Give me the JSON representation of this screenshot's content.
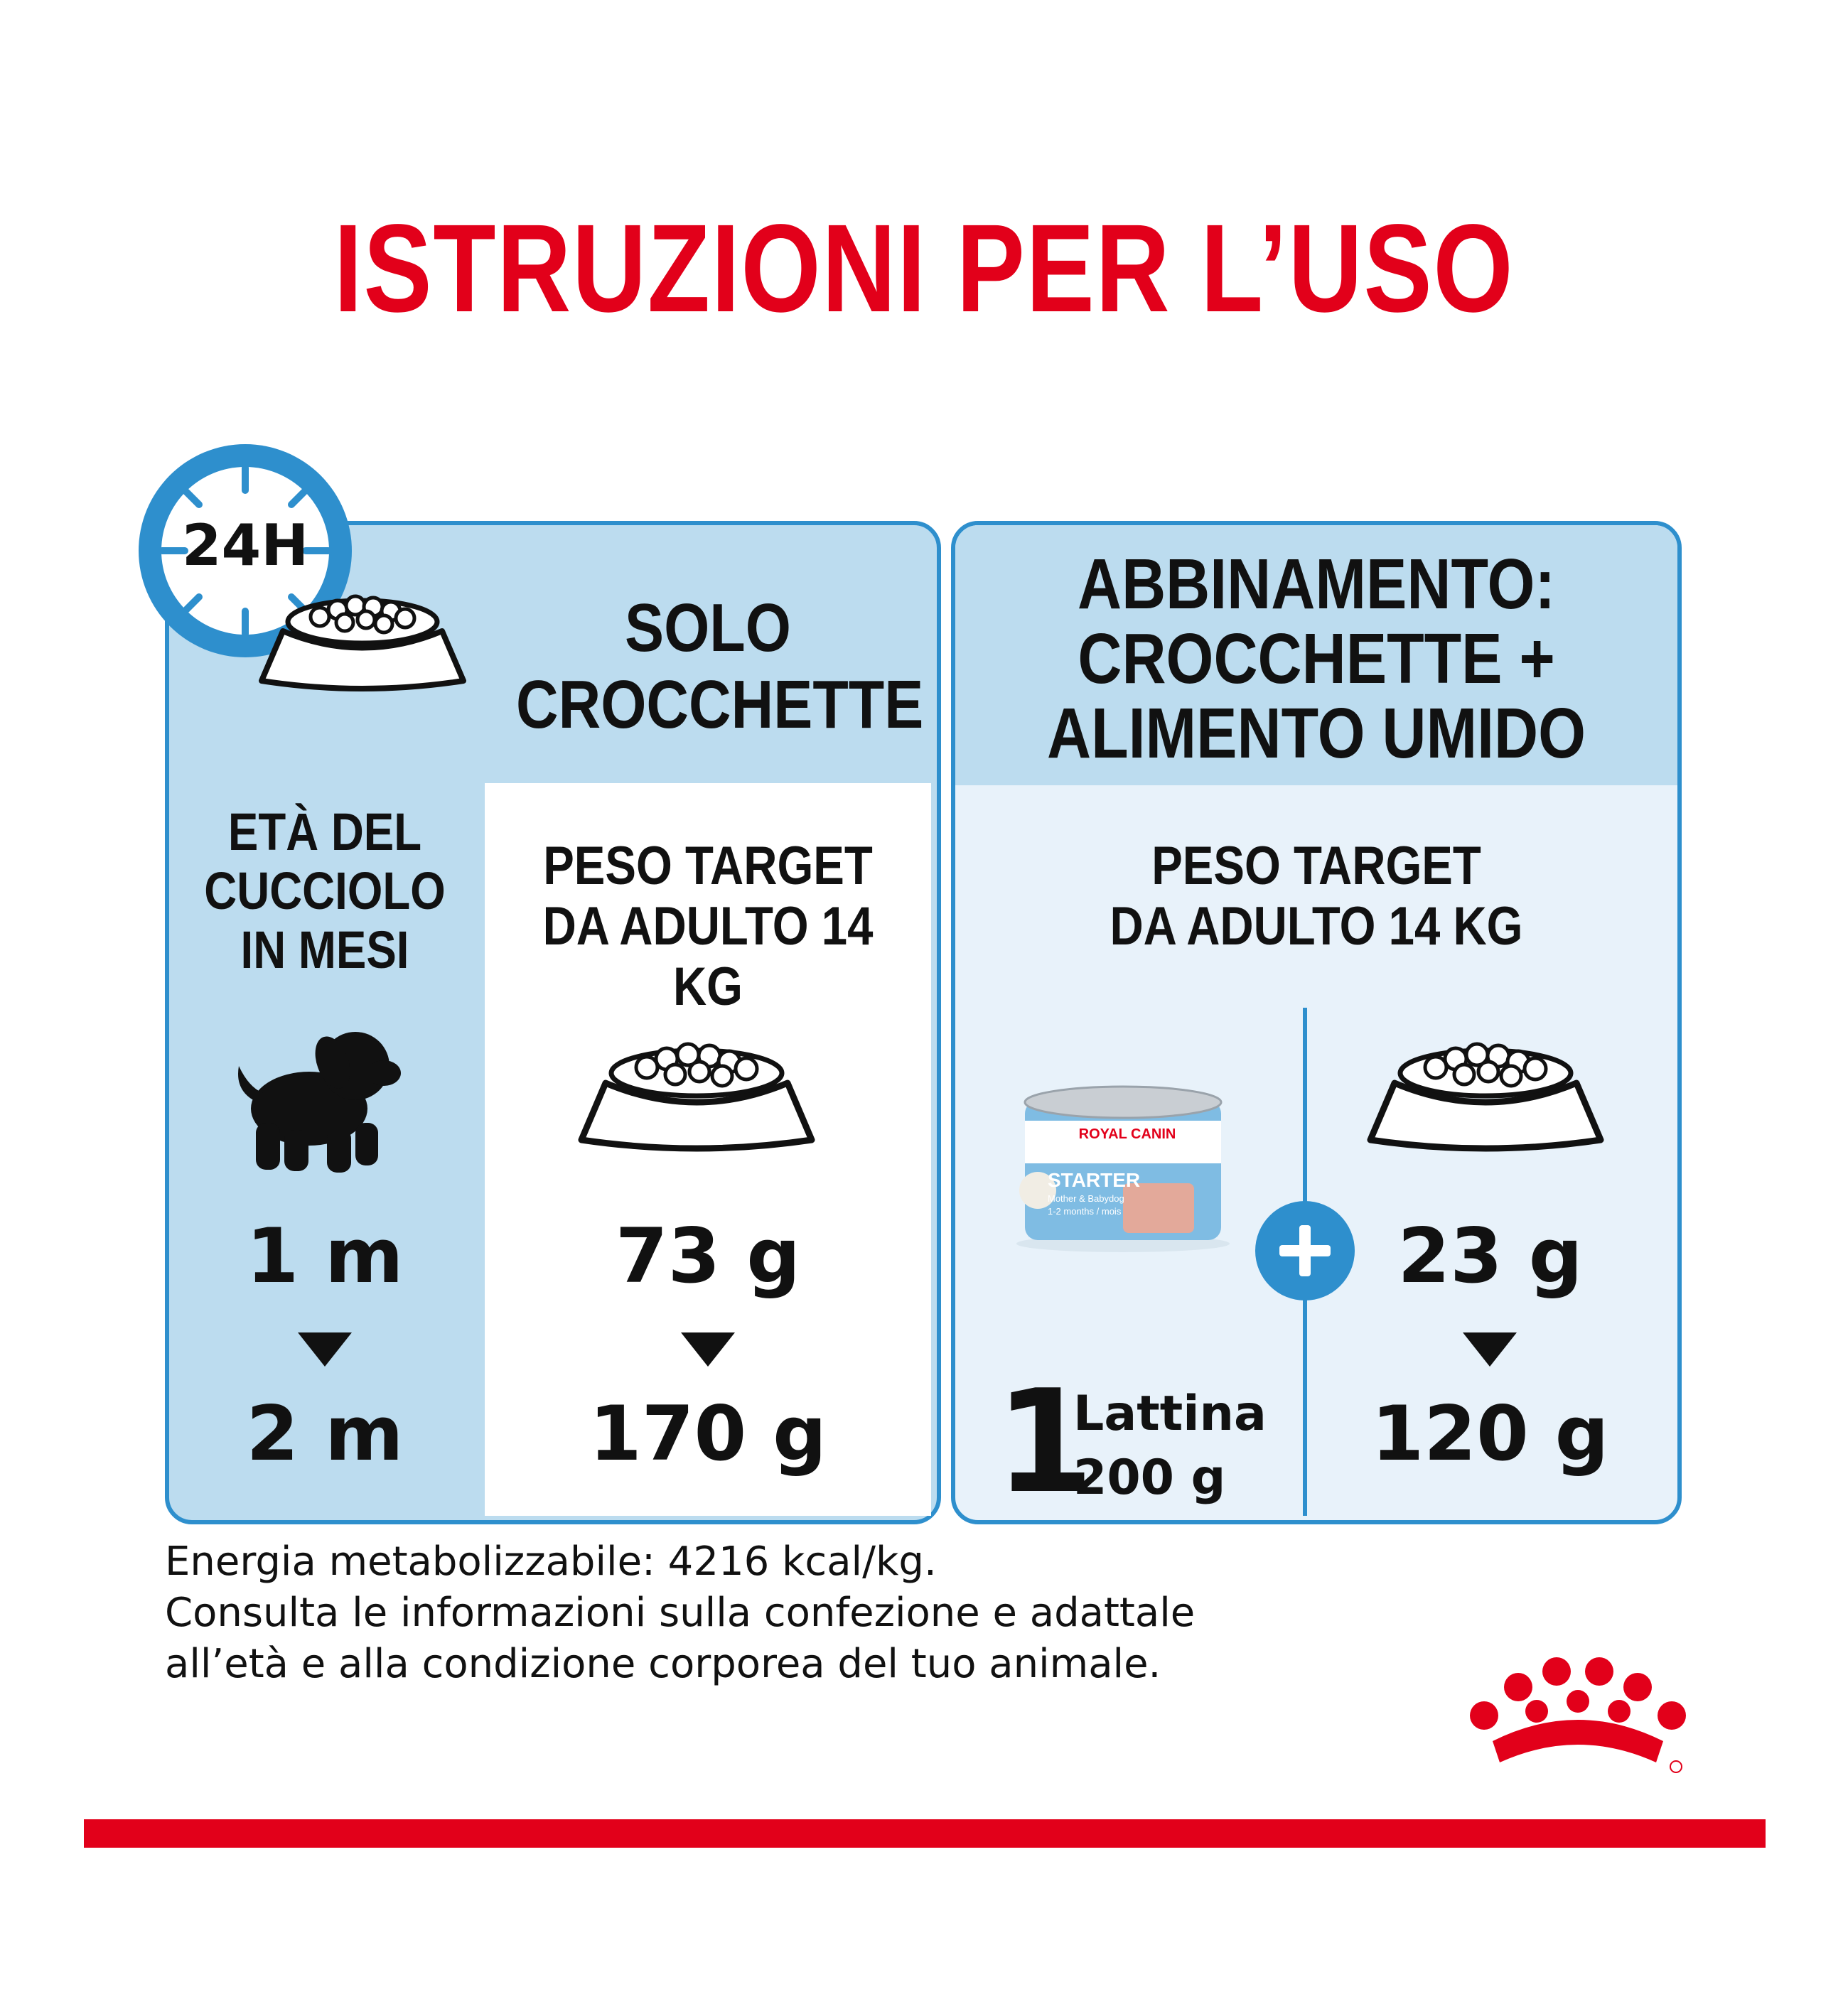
{
  "title": "ISTRUZIONI PER L’USO",
  "badge": "24H",
  "left_panel": {
    "header": [
      "SOLO",
      "CROCCHETTE"
    ],
    "age_label": [
      "ETÀ DEL",
      "CUCCIOLO",
      "IN MESI"
    ],
    "weight_label": [
      "PESO TARGET",
      "DA ADULTO 14 KG"
    ],
    "age_from": "1 m",
    "age_to": "2 m",
    "grams_from": "73 g",
    "grams_to": "170 g"
  },
  "right_panel": {
    "header": [
      "ABBINAMENTO:",
      "CROCCHETTE +",
      "ALIMENTO UMIDO"
    ],
    "weight_label": [
      "PESO TARGET",
      "DA ADULTO 14 KG"
    ],
    "can_count": "1",
    "can_unit": "Lattina",
    "can_weight": "200 g",
    "grams_from": "23 g",
    "grams_to": "120 g",
    "can_brand": "ROYAL CANIN",
    "can_product": "STARTER",
    "can_sub1": "Mother & Babydog",
    "can_sub2": "1-2 months / mois"
  },
  "footer": [
    "Energia metabolizzabile: 4216 kcal/kg.",
    "Consulta le informazioni sulla confezione e adattale",
    "all’età e alla condizione corporea del tuo animale."
  ],
  "colors": {
    "red": "#e2001a",
    "blue": "#2e8fcd",
    "light_blue": "#bcdcef",
    "pale_blue": "#e8f2fa"
  }
}
